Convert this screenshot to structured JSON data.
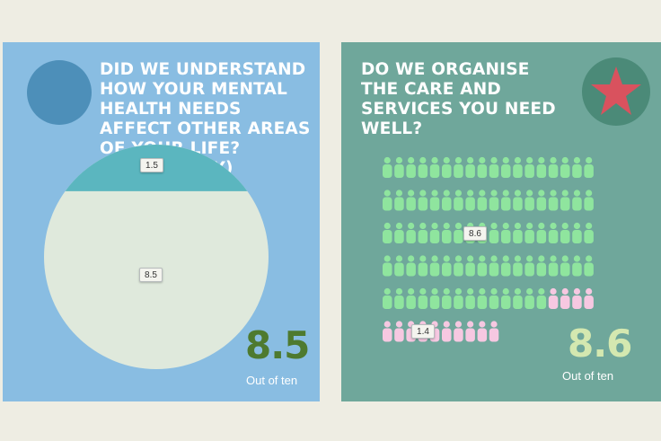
{
  "colors": {
    "background": "#eeede3",
    "left_panel": "#89bde2",
    "right_panel": "#6fa79b",
    "pie_main": "#dfe9dc",
    "pie_other": "#5bb6bf",
    "icon_green": "#8fe59e",
    "icon_pink": "#f6c8e1",
    "left_badge": "#4d8fb9",
    "right_badge": "#4b8a78",
    "star": "#d9525e"
  },
  "left_panel": {
    "title": "Did we understand how your mental health needs affect other areas of your life? (Community)",
    "badge_icon": "circle-icon",
    "score": "8.5",
    "score_caption": "Out of ten"
  },
  "right_panel": {
    "title": "Do we organise the care and services you need well?",
    "badge_icon": "star-icon",
    "score": "8.6",
    "score_caption": "Out of ten"
  },
  "chart_data": [
    {
      "type": "pie",
      "slices": [
        {
          "label": "8.5",
          "value": 8.5,
          "color": "#dfe9dc"
        },
        {
          "label": "1.5",
          "value": 1.5,
          "color": "#5bb6bf"
        }
      ]
    },
    {
      "type": "pictogram",
      "icon": "person-icon",
      "icons_total": 100,
      "slices": [
        {
          "label": "8.6",
          "value": 8.6,
          "color": "#8fe59e"
        },
        {
          "label": "1.4",
          "value": 1.4,
          "color": "#f6c8e1"
        }
      ]
    }
  ]
}
